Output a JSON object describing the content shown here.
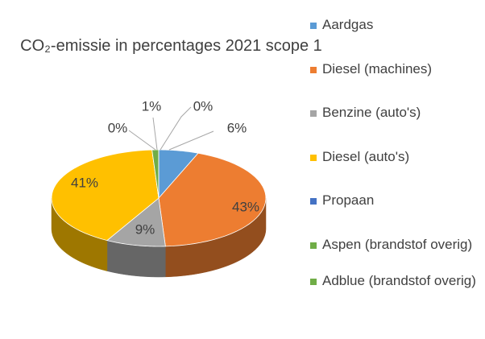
{
  "chart_data": {
    "type": "pie3d",
    "title": "CO₂-emissie in  percentages 2021 scope 1",
    "categories": [
      "Aardgas",
      "Diesel (machines)",
      "Benzine (auto's)",
      "Diesel (auto's)",
      "Propaan",
      "Aspen (brandstof overig)",
      "Adblue (brandstof overig)"
    ],
    "values": [
      6,
      43,
      9,
      41,
      0,
      1,
      0
    ],
    "value_labels": [
      "6%",
      "43%",
      "9%",
      "41%",
      "0%",
      "1%",
      "0%"
    ],
    "colors": [
      "#5b9bd5",
      "#ed7d31",
      "#a5a5a5",
      "#ffc000",
      "#4472c4",
      "#70ad47",
      "#70ad47"
    ],
    "legend": "right"
  }
}
